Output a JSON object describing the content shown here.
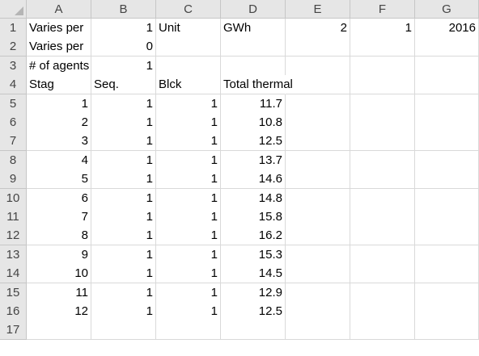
{
  "columns": [
    "A",
    "B",
    "C",
    "D",
    "E",
    "F",
    "G"
  ],
  "rows": [
    1,
    2,
    3,
    4,
    5,
    6,
    7,
    8,
    9,
    10,
    11,
    12,
    13,
    14,
    15,
    16,
    17
  ],
  "cells": [
    [
      "Varies per",
      "1",
      "Unit",
      "GWh",
      "2",
      "1",
      "2016"
    ],
    [
      "Varies per",
      "0",
      "",
      "",
      "",
      "",
      ""
    ],
    [
      "# of agents",
      "1",
      "",
      "",
      "",
      "",
      ""
    ],
    [
      "Stag",
      "Seq.",
      "Blck",
      "Total thermal",
      "",
      "",
      ""
    ],
    [
      "1",
      "1",
      "1",
      "11.7",
      "",
      "",
      ""
    ],
    [
      "2",
      "1",
      "1",
      "10.8",
      "",
      "",
      ""
    ],
    [
      "3",
      "1",
      "1",
      "12.5",
      "",
      "",
      ""
    ],
    [
      "4",
      "1",
      "1",
      "13.7",
      "",
      "",
      ""
    ],
    [
      "5",
      "1",
      "1",
      "14.6",
      "",
      "",
      ""
    ],
    [
      "6",
      "1",
      "1",
      "14.8",
      "",
      "",
      ""
    ],
    [
      "7",
      "1",
      "1",
      "15.8",
      "",
      "",
      ""
    ],
    [
      "8",
      "1",
      "1",
      "16.2",
      "",
      "",
      ""
    ],
    [
      "9",
      "1",
      "1",
      "15.3",
      "",
      "",
      ""
    ],
    [
      "10",
      "1",
      "1",
      "14.5",
      "",
      "",
      ""
    ],
    [
      "11",
      "1",
      "1",
      "12.9",
      "",
      "",
      ""
    ],
    [
      "12",
      "1",
      "1",
      "12.5",
      "",
      "",
      ""
    ],
    [
      "",
      "",
      "",
      "",
      "",
      "",
      ""
    ]
  ],
  "colors": {
    "header_bg": "#e6e6e6",
    "grid": "#d9d9d9",
    "header_text": "#444444"
  }
}
